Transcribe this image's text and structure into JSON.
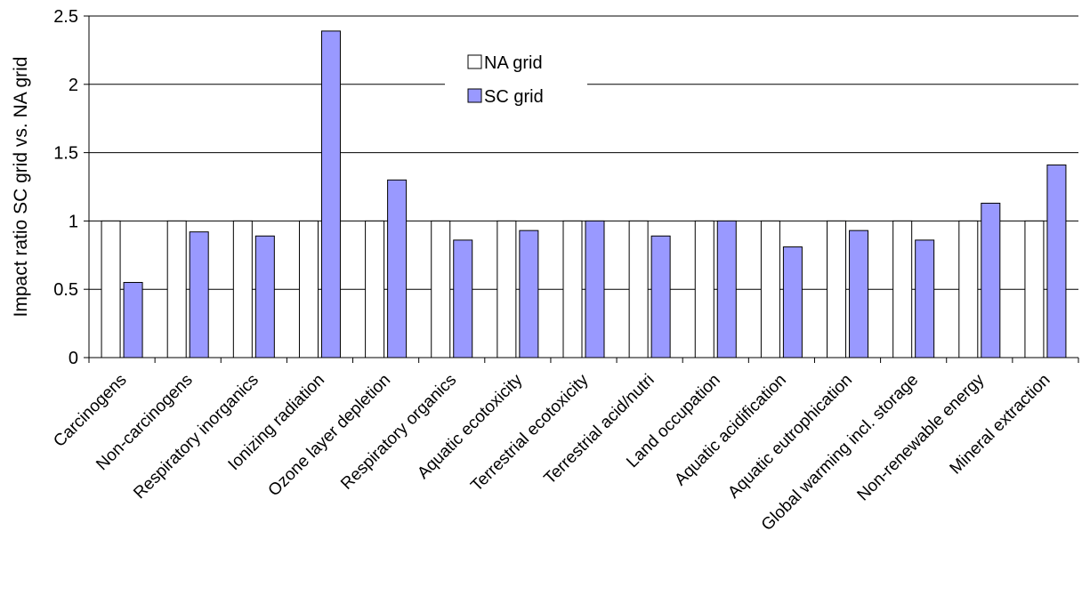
{
  "chart_data": {
    "type": "bar",
    "title": "",
    "xlabel": "",
    "ylabel": "Impact ratio SC grid vs. NA grid",
    "ylim": [
      0,
      2.5
    ],
    "yticks": [
      "0",
      "0.5",
      "1",
      "1.5",
      "2",
      "2.5"
    ],
    "grid": true,
    "legend_position": "top-center",
    "categories": [
      "Carcinogens",
      "Non-carcinogens",
      "Respiratory inorganics",
      "Ionizing radiation",
      "Ozone layer depletion",
      "Respiratory organics",
      "Aquatic ecotoxicity",
      "Terrestrial ecotoxicity",
      "Terrestrial acid/nutri",
      "Land occupation",
      "Aquatic acidification",
      "Aquatic eutrophication",
      "Global warming incl. storage",
      "Non-renewable energy",
      "Mineral extraction"
    ],
    "series": [
      {
        "name": "NA grid",
        "color": "#ffffff",
        "values": [
          1,
          1,
          1,
          1,
          1,
          1,
          1,
          1,
          1,
          1,
          1,
          1,
          1,
          1,
          1
        ]
      },
      {
        "name": "SC grid",
        "color": "#9999ff",
        "values": [
          0.55,
          0.92,
          0.89,
          2.39,
          1.3,
          0.86,
          0.93,
          1.0,
          0.89,
          1.0,
          0.81,
          0.93,
          0.86,
          1.13,
          1.41
        ]
      }
    ]
  }
}
